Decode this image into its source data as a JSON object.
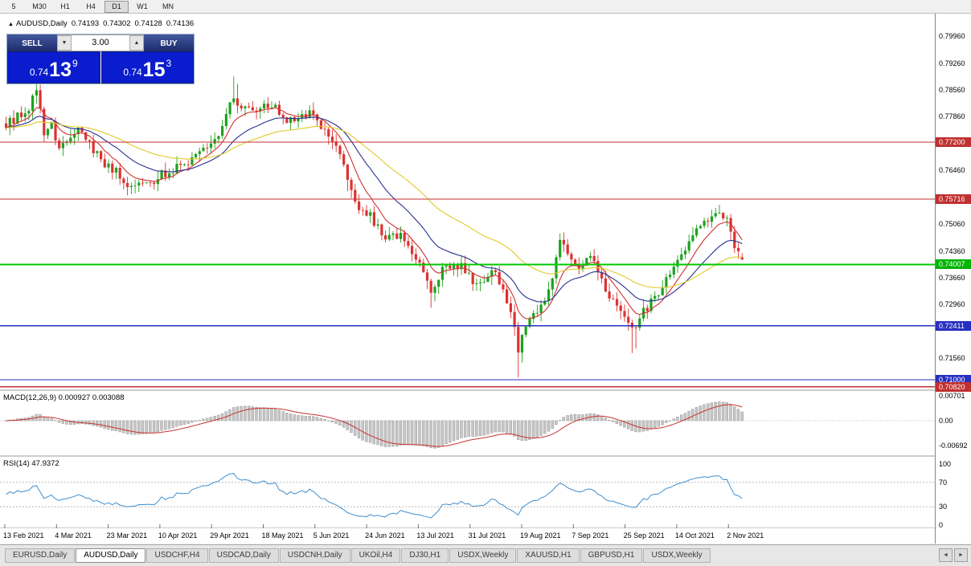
{
  "toolbar": {
    "periods": [
      "5",
      "M30",
      "H1",
      "H4",
      "D1",
      "W1",
      "MN"
    ],
    "active_period": "D1"
  },
  "chart_header": {
    "collapse_icon": "▲",
    "symbol": "AUDUSD,Daily",
    "open": "0.74193",
    "high": "0.74302",
    "low": "0.74128",
    "close": "0.74136"
  },
  "trade_panel": {
    "sell_label": "SELL",
    "buy_label": "BUY",
    "volume": "3.00",
    "volume_down_icon": "▼",
    "volume_up_icon": "▲",
    "sell_price": {
      "prefix": "0.74",
      "pips": "13",
      "point": "9"
    },
    "buy_price": {
      "prefix": "0.74",
      "pips": "15",
      "point": "3"
    }
  },
  "price_axis": {
    "ticks": [
      "0.79960",
      "0.79260",
      "0.78560",
      "0.77860",
      "0.76460",
      "0.75060",
      "0.74360",
      "0.73660",
      "0.72960",
      "0.71560"
    ],
    "line_labels": [
      {
        "text": "0.77200",
        "price": 0.772,
        "color": "#c03030"
      },
      {
        "text": "0.75716",
        "price": 0.75716,
        "color": "#c03030"
      },
      {
        "text": "0.74007",
        "price": 0.74007,
        "color": "#00b400"
      },
      {
        "text": "0.72411",
        "price": 0.72411,
        "color": "#2830c0"
      },
      {
        "text": "0.71000",
        "price": 0.71,
        "color": "#2830c0"
      },
      {
        "text": "0.70820",
        "price": 0.7082,
        "color": "#c03030"
      }
    ]
  },
  "macd_panel": {
    "label": "MACD(12,26,9) 0.000927 0.003088",
    "axis": [
      {
        "text": "0.00701",
        "value": 0.00701
      },
      {
        "text": "0.00",
        "value": 0
      },
      {
        "text": "-0.00692",
        "value": -0.00692
      }
    ]
  },
  "rsi_panel": {
    "label": "RSI(14) 47.9372",
    "axis": [
      {
        "text": "100",
        "value": 100
      },
      {
        "text": "70",
        "value": 70
      },
      {
        "text": "30",
        "value": 30
      },
      {
        "text": "0",
        "value": 0
      }
    ],
    "levels": [
      70,
      30
    ]
  },
  "date_axis": [
    "13 Feb 2021",
    "4 Mar 2021",
    "23 Mar 2021",
    "10 Apr 2021",
    "29 Apr 2021",
    "18 May 2021",
    "5 Jun 2021",
    "24 Jun 2021",
    "13 Jul 2021",
    "31 Jul 2021",
    "19 Aug 2021",
    "7 Sep 2021",
    "25 Sep 2021",
    "14 Oct 2021",
    "2 Nov 2021"
  ],
  "tabs": [
    {
      "label": "EURUSD,Daily",
      "active": false
    },
    {
      "label": "AUDUSD,Daily",
      "active": true
    },
    {
      "label": "USDCHF,H4",
      "active": false
    },
    {
      "label": "USDCAD,Daily",
      "active": false
    },
    {
      "label": "USDCNH,Daily",
      "active": false
    },
    {
      "label": "UKOil,H4",
      "active": false
    },
    {
      "label": "DJ30,H1",
      "active": false
    },
    {
      "label": "USDX,Weekly",
      "active": false
    },
    {
      "label": "XAUUSD,H1",
      "active": false
    },
    {
      "label": "GBPUSD,H1",
      "active": false
    },
    {
      "label": "USDX,Weekly",
      "active": false
    }
  ],
  "tab_nav": {
    "left_icon": "◄",
    "right_icon": "►"
  },
  "colors": {
    "up": "#1fa11f",
    "down": "#dc3232",
    "ma_fast": "#d03030",
    "ma_mid": "#283090",
    "ma_slow": "#e2ca28",
    "macd_hist_fill": "#c6c6c6",
    "macd_hist_stroke": "#8e8e8e",
    "macd_signal": "#c83232",
    "rsi_line": "#3e8ed0",
    "hline_red": "#c03030",
    "hline_green": "#00c800",
    "hline_blue": "#2830c0"
  },
  "chart_data": [
    {
      "type": "candlestick",
      "symbol": "AUDUSD",
      "timeframe": "Daily",
      "bars": 195,
      "y_range": [
        0.7073,
        0.8055
      ],
      "last_bar": {
        "open": 0.74193,
        "high": 0.74302,
        "low": 0.74128,
        "close": 0.74136
      },
      "close_anchors": [
        [
          0,
          0.776
        ],
        [
          3,
          0.779
        ],
        [
          6,
          0.78
        ],
        [
          8,
          0.7862
        ],
        [
          10,
          0.775
        ],
        [
          12,
          0.7768
        ],
        [
          14,
          0.77
        ],
        [
          17,
          0.774
        ],
        [
          20,
          0.7758
        ],
        [
          23,
          0.77
        ],
        [
          26,
          0.7662
        ],
        [
          29,
          0.764
        ],
        [
          32,
          0.76
        ],
        [
          35,
          0.7625
        ],
        [
          38,
          0.7612
        ],
        [
          41,
          0.7638
        ],
        [
          44,
          0.7645
        ],
        [
          47,
          0.7665
        ],
        [
          50,
          0.769
        ],
        [
          53,
          0.7715
        ],
        [
          56,
          0.7745
        ],
        [
          58,
          0.779
        ],
        [
          60,
          0.7845
        ],
        [
          62,
          0.7805
        ],
        [
          65,
          0.7798
        ],
        [
          68,
          0.7818
        ],
        [
          71,
          0.7808
        ],
        [
          74,
          0.777
        ],
        [
          77,
          0.7788
        ],
        [
          80,
          0.7792
        ],
        [
          82,
          0.7775
        ],
        [
          84,
          0.7748
        ],
        [
          86,
          0.7712
        ],
        [
          88,
          0.769
        ],
        [
          90,
          0.7625
        ],
        [
          92,
          0.7565
        ],
        [
          94,
          0.7545
        ],
        [
          96,
          0.753
        ],
        [
          98,
          0.7495
        ],
        [
          100,
          0.7478
        ],
        [
          102,
          0.747
        ],
        [
          104,
          0.7478
        ],
        [
          106,
          0.7452
        ],
        [
          108,
          0.7425
        ],
        [
          110,
          0.7385
        ],
        [
          112,
          0.7335
        ],
        [
          114,
          0.7372
        ],
        [
          116,
          0.7398
        ],
        [
          118,
          0.7402
        ],
        [
          120,
          0.7395
        ],
        [
          122,
          0.737
        ],
        [
          124,
          0.7342
        ],
        [
          126,
          0.736
        ],
        [
          128,
          0.7382
        ],
        [
          130,
          0.7355
        ],
        [
          132,
          0.7308
        ],
        [
          134,
          0.724
        ],
        [
          135,
          0.717
        ],
        [
          136,
          0.7222
        ],
        [
          138,
          0.7255
        ],
        [
          140,
          0.7282
        ],
        [
          142,
          0.7302
        ],
        [
          144,
          0.7368
        ],
        [
          146,
          0.7452
        ],
        [
          148,
          0.743
        ],
        [
          150,
          0.7388
        ],
        [
          152,
          0.7405
        ],
        [
          154,
          0.7422
        ],
        [
          156,
          0.738
        ],
        [
          158,
          0.734
        ],
        [
          160,
          0.73
        ],
        [
          162,
          0.7272
        ],
        [
          164,
          0.7242
        ],
        [
          166,
          0.7225
        ],
        [
          168,
          0.7282
        ],
        [
          170,
          0.73
        ],
        [
          172,
          0.7318
        ],
        [
          174,
          0.736
        ],
        [
          176,
          0.7392
        ],
        [
          178,
          0.7418
        ],
        [
          180,
          0.7468
        ],
        [
          182,
          0.7488
        ],
        [
          184,
          0.7512
        ],
        [
          186,
          0.753
        ],
        [
          188,
          0.7545
        ],
        [
          190,
          0.7512
        ],
        [
          191,
          0.7478
        ],
        [
          192,
          0.7452
        ],
        [
          193,
          0.7428
        ],
        [
          194,
          0.74136
        ]
      ],
      "wick_overrides": [
        {
          "i": 8,
          "h": 0.7892
        },
        {
          "i": 9,
          "h": 0.787
        },
        {
          "i": 60,
          "h": 0.7891
        },
        {
          "i": 61,
          "h": 0.7872
        },
        {
          "i": 90,
          "l": 0.7592
        },
        {
          "i": 112,
          "l": 0.7288
        },
        {
          "i": 134,
          "l": 0.7215
        },
        {
          "i": 135,
          "l": 0.7106
        },
        {
          "i": 136,
          "l": 0.7145
        },
        {
          "i": 146,
          "h": 0.7478
        },
        {
          "i": 147,
          "h": 0.7462
        },
        {
          "i": 165,
          "l": 0.717
        },
        {
          "i": 166,
          "l": 0.7182
        },
        {
          "i": 187,
          "h": 0.7548
        },
        {
          "i": 188,
          "h": 0.7556
        }
      ],
      "moving_averages": [
        {
          "period": 8,
          "color_key": "ma_fast"
        },
        {
          "period": 20,
          "color_key": "ma_mid"
        },
        {
          "period": 45,
          "color_key": "ma_slow"
        }
      ],
      "horizontal_lines": [
        {
          "price": 0.772,
          "color_key": "hline_red",
          "width": 1.2
        },
        {
          "price": 0.75716,
          "color_key": "hline_red",
          "width": 1.2
        },
        {
          "price": 0.74007,
          "color_key": "hline_green",
          "width": 1.6
        },
        {
          "price": 0.72411,
          "color_key": "hline_blue",
          "width": 1.2
        },
        {
          "price": 0.71,
          "color_key": "hline_blue",
          "width": 1.2
        },
        {
          "price": 0.7082,
          "color_key": "hline_red",
          "width": 1.5
        }
      ]
    },
    {
      "type": "bar",
      "name": "MACD(12,26,9)",
      "params": [
        12,
        26,
        9
      ],
      "current_values": [
        0.000927,
        0.003088
      ],
      "y_ticks": [
        0.00701,
        0,
        -0.00692
      ]
    },
    {
      "type": "line",
      "name": "RSI(14)",
      "period": 14,
      "current_value": 47.9372,
      "levels": [
        70,
        30
      ],
      "y_ticks": [
        100,
        70,
        30,
        0
      ]
    }
  ]
}
